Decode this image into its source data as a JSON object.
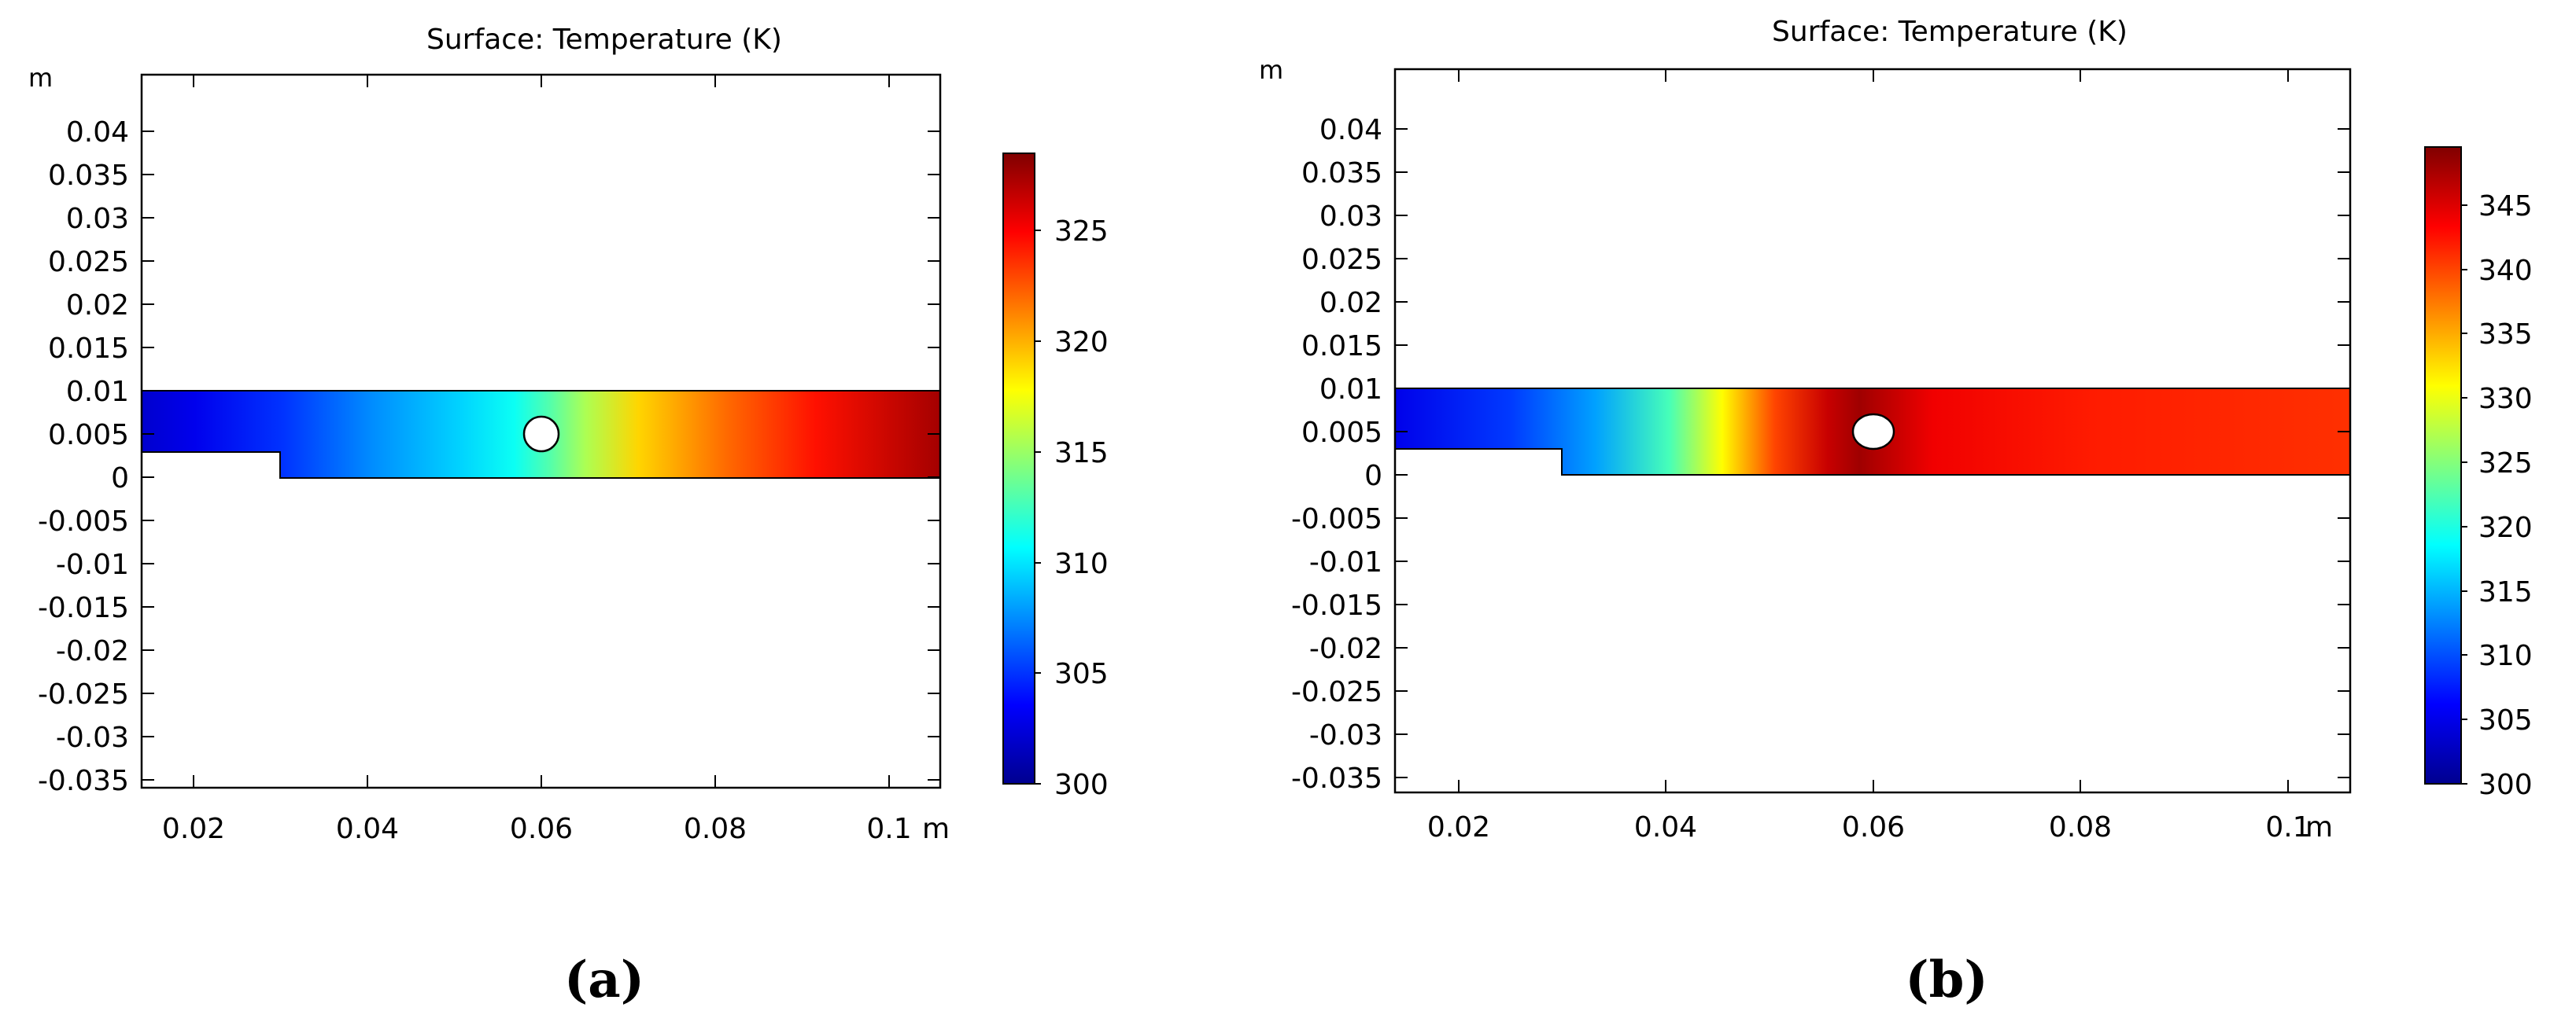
{
  "chart_data": [
    {
      "type": "heatmap",
      "panel_label": "(a)",
      "title": "Surface: Temperature (K)",
      "y_unit": "m",
      "x_unit": "m",
      "xlim": [
        0.014,
        0.104
      ],
      "ylim": [
        -0.0365,
        0.0465
      ],
      "x_ticks": [
        {
          "value": 0.02,
          "label": "0.02"
        },
        {
          "value": 0.04,
          "label": "0.04"
        },
        {
          "value": 0.06,
          "label": "0.06"
        },
        {
          "value": 0.08,
          "label": "0.08"
        },
        {
          "value": 0.1,
          "label": "0.1"
        }
      ],
      "y_ticks": [
        {
          "value": 0.04,
          "label": "0.04"
        },
        {
          "value": 0.035,
          "label": "0.035"
        },
        {
          "value": 0.03,
          "label": "0.03"
        },
        {
          "value": 0.025,
          "label": "0.025"
        },
        {
          "value": 0.02,
          "label": "0.02"
        },
        {
          "value": 0.015,
          "label": "0.015"
        },
        {
          "value": 0.01,
          "label": "0.01"
        },
        {
          "value": 0.005,
          "label": "0.005"
        },
        {
          "value": 0,
          "label": "0"
        },
        {
          "value": -0.005,
          "label": "-0.005"
        },
        {
          "value": -0.01,
          "label": "-0.01"
        },
        {
          "value": -0.015,
          "label": "-0.015"
        },
        {
          "value": -0.02,
          "label": "-0.02"
        },
        {
          "value": -0.025,
          "label": "-0.025"
        },
        {
          "value": -0.03,
          "label": "-0.03"
        },
        {
          "value": -0.035,
          "label": "-0.035"
        }
      ],
      "domain": {
        "channel_x": [
          0.014,
          0.104
        ],
        "channel_y": [
          0,
          0.01
        ],
        "step": {
          "x_end": 0.03,
          "y_top": 0.003
        },
        "cylinder_center": [
          0.06,
          0.005
        ],
        "cylinder_radius": 0.0019
      },
      "temperature_profile": [
        {
          "x": 0.014,
          "t": 302
        },
        {
          "x": 0.02,
          "t": 303
        },
        {
          "x": 0.03,
          "t": 305
        },
        {
          "x": 0.04,
          "t": 307.5
        },
        {
          "x": 0.05,
          "t": 309.5
        },
        {
          "x": 0.056,
          "t": 311
        },
        {
          "x": 0.06,
          "t": 313
        },
        {
          "x": 0.064,
          "t": 315.5
        },
        {
          "x": 0.07,
          "t": 319
        },
        {
          "x": 0.08,
          "t": 322
        },
        {
          "x": 0.09,
          "t": 324.5
        },
        {
          "x": 0.104,
          "t": 327.5
        }
      ],
      "colorbar": {
        "min": 300,
        "max": 328.5,
        "ticks": [
          {
            "value": 300,
            "label": "300"
          },
          {
            "value": 305,
            "label": "305"
          },
          {
            "value": 310,
            "label": "310"
          },
          {
            "value": 315,
            "label": "315"
          },
          {
            "value": 320,
            "label": "320"
          },
          {
            "value": 325,
            "label": "325"
          }
        ]
      }
    },
    {
      "type": "heatmap",
      "panel_label": "(b)",
      "title": "Surface: Temperature (K)",
      "y_unit": "m",
      "x_unit": "m",
      "xlim": [
        0.014,
        0.1045
      ],
      "ylim": [
        -0.0365,
        0.046
      ],
      "x_ticks": [
        {
          "value": 0.02,
          "label": "0.02"
        },
        {
          "value": 0.04,
          "label": "0.04"
        },
        {
          "value": 0.06,
          "label": "0.06"
        },
        {
          "value": 0.08,
          "label": "0.08"
        },
        {
          "value": 0.1,
          "label": "0.1"
        }
      ],
      "y_ticks": [
        {
          "value": 0.04,
          "label": "0.04"
        },
        {
          "value": 0.035,
          "label": "0.035"
        },
        {
          "value": 0.03,
          "label": "0.03"
        },
        {
          "value": 0.025,
          "label": "0.025"
        },
        {
          "value": 0.02,
          "label": "0.02"
        },
        {
          "value": 0.015,
          "label": "0.015"
        },
        {
          "value": 0.01,
          "label": "0.01"
        },
        {
          "value": 0.005,
          "label": "0.005"
        },
        {
          "value": 0,
          "label": "0"
        },
        {
          "value": -0.005,
          "label": "-0.005"
        },
        {
          "value": -0.01,
          "label": "-0.01"
        },
        {
          "value": -0.015,
          "label": "-0.015"
        },
        {
          "value": -0.02,
          "label": "-0.02"
        },
        {
          "value": -0.025,
          "label": "-0.025"
        },
        {
          "value": -0.03,
          "label": "-0.03"
        },
        {
          "value": -0.035,
          "label": "-0.035"
        }
      ],
      "domain": {
        "channel_x": [
          0.014,
          0.1045
        ],
        "channel_y": [
          0,
          0.01
        ],
        "step": {
          "x_end": 0.03,
          "y_top": 0.003
        },
        "cylinder_center": [
          0.06,
          0.005
        ],
        "cylinder_radius": 0.0019
      },
      "temperature_profile": [
        {
          "x": 0.014,
          "t": 305
        },
        {
          "x": 0.025,
          "t": 309
        },
        {
          "x": 0.033,
          "t": 314
        },
        {
          "x": 0.04,
          "t": 322
        },
        {
          "x": 0.045,
          "t": 331
        },
        {
          "x": 0.05,
          "t": 340
        },
        {
          "x": 0.055,
          "t": 346
        },
        {
          "x": 0.058,
          "t": 348
        },
        {
          "x": 0.065,
          "t": 344
        },
        {
          "x": 0.08,
          "t": 342
        },
        {
          "x": 0.1045,
          "t": 341
        }
      ],
      "colorbar": {
        "min": 300,
        "max": 349.5,
        "ticks": [
          {
            "value": 300,
            "label": "300"
          },
          {
            "value": 305,
            "label": "305"
          },
          {
            "value": 310,
            "label": "310"
          },
          {
            "value": 315,
            "label": "315"
          },
          {
            "value": 320,
            "label": "320"
          },
          {
            "value": 325,
            "label": "325"
          },
          {
            "value": 330,
            "label": "330"
          },
          {
            "value": 335,
            "label": "335"
          },
          {
            "value": 340,
            "label": "340"
          },
          {
            "value": 345,
            "label": "345"
          }
        ]
      }
    }
  ]
}
